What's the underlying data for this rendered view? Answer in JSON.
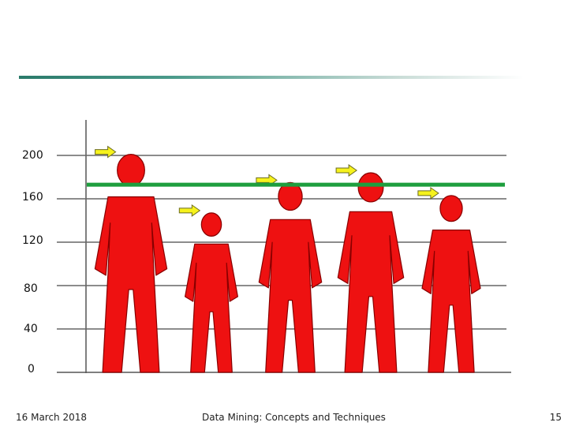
{
  "chart_data": {
    "type": "pictograph",
    "y_ticks": [
      "200",
      "160",
      "120",
      "80",
      "40",
      "0"
    ],
    "ylim": [
      0,
      200
    ],
    "reference_line": {
      "value": 173,
      "color": "#1e9e3e"
    },
    "figures": [
      {
        "height": 201
      },
      {
        "height": 147
      },
      {
        "height": 175
      },
      {
        "height": 184
      },
      {
        "height": 163
      }
    ],
    "figure_color": "#ee1111",
    "arrow_color": "#f6f21c"
  },
  "footer": {
    "date": "16 March 2018",
    "course": "Data Mining: Concepts and Techniques",
    "page": "15"
  }
}
